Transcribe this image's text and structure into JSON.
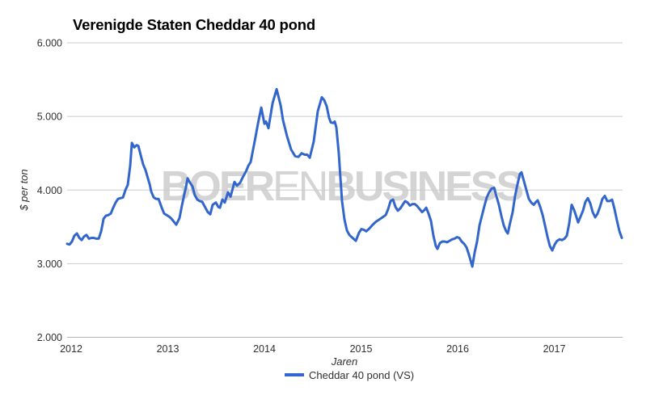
{
  "chart": {
    "title": "Verenigde Staten Cheddar 40 pond",
    "watermark": {
      "text": "BOERENBUSINESS",
      "segments": [
        {
          "text": "BOER",
          "weight": "bold"
        },
        {
          "text": "EN",
          "weight": "normal"
        },
        {
          "text": "BUSINESS",
          "weight": "bold"
        }
      ],
      "color": "#d4d4d4"
    },
    "colors": {
      "line": "#3366cc",
      "grid": "#cccccc",
      "baseline": "#b3b3b3",
      "text": "#2f2f2f",
      "background": "#ffffff"
    }
  },
  "chart_data": {
    "type": "line",
    "title": "Verenigde Staten Cheddar 40 pond",
    "xlabel": "Jaren",
    "ylabel": "$ per ton",
    "xlim": [
      2011.958,
      2017.707
    ],
    "ylim": [
      2000,
      6000
    ],
    "grid": "horizontal-only",
    "x_ticks": [
      {
        "year": 2012,
        "label": "2012"
      },
      {
        "year": 2013,
        "label": "2013"
      },
      {
        "year": 2014,
        "label": "2014"
      },
      {
        "year": 2015,
        "label": "2015"
      },
      {
        "year": 2016,
        "label": "2016"
      },
      {
        "year": 2017,
        "label": "2017"
      }
    ],
    "y_ticks": [
      {
        "value": 2000,
        "label": "2.000"
      },
      {
        "value": 3000,
        "label": "3.000"
      },
      {
        "value": 4000,
        "label": "4.000"
      },
      {
        "value": 5000,
        "label": "5.000"
      },
      {
        "value": 6000,
        "label": "6.000"
      }
    ],
    "legend": {
      "position": "bottom",
      "entries": [
        {
          "label": "Cheddar 40 pond (VS)",
          "color": "#3366cc"
        }
      ]
    },
    "series": [
      {
        "name": "Cheddar 40 pond (VS)",
        "points": [
          [
            2011.958,
            3270
          ],
          [
            2011.983,
            3260
          ],
          [
            2012.008,
            3300
          ],
          [
            2012.033,
            3380
          ],
          [
            2012.059,
            3410
          ],
          [
            2012.084,
            3350
          ],
          [
            2012.109,
            3320
          ],
          [
            2012.134,
            3370
          ],
          [
            2012.159,
            3390
          ],
          [
            2012.184,
            3340
          ],
          [
            2012.209,
            3350
          ],
          [
            2012.234,
            3350
          ],
          [
            2012.259,
            3340
          ],
          [
            2012.285,
            3340
          ],
          [
            2012.31,
            3440
          ],
          [
            2012.335,
            3610
          ],
          [
            2012.36,
            3650
          ],
          [
            2012.385,
            3660
          ],
          [
            2012.41,
            3680
          ],
          [
            2012.435,
            3760
          ],
          [
            2012.46,
            3830
          ],
          [
            2012.485,
            3880
          ],
          [
            2012.51,
            3890
          ],
          [
            2012.536,
            3900
          ],
          [
            2012.561,
            4000
          ],
          [
            2012.586,
            4070
          ],
          [
            2012.611,
            4330
          ],
          [
            2012.628,
            4640
          ],
          [
            2012.653,
            4580
          ],
          [
            2012.678,
            4610
          ],
          [
            2012.695,
            4600
          ],
          [
            2012.72,
            4470
          ],
          [
            2012.745,
            4350
          ],
          [
            2012.77,
            4270
          ],
          [
            2012.787,
            4190
          ],
          [
            2012.812,
            4080
          ],
          [
            2012.828,
            3980
          ],
          [
            2012.854,
            3900
          ],
          [
            2012.879,
            3880
          ],
          [
            2012.904,
            3880
          ],
          [
            2012.921,
            3820
          ],
          [
            2012.937,
            3760
          ],
          [
            2012.962,
            3680
          ],
          [
            2012.987,
            3660
          ],
          [
            2013.013,
            3640
          ],
          [
            2013.038,
            3610
          ],
          [
            2013.063,
            3570
          ],
          [
            2013.088,
            3530
          ],
          [
            2013.121,
            3620
          ],
          [
            2013.146,
            3790
          ],
          [
            2013.172,
            3950
          ],
          [
            2013.188,
            4040
          ],
          [
            2013.205,
            4160
          ],
          [
            2013.23,
            4100
          ],
          [
            2013.255,
            4050
          ],
          [
            2013.28,
            3930
          ],
          [
            2013.305,
            3870
          ],
          [
            2013.331,
            3850
          ],
          [
            2013.356,
            3840
          ],
          [
            2013.381,
            3780
          ],
          [
            2013.414,
            3700
          ],
          [
            2013.439,
            3670
          ],
          [
            2013.464,
            3800
          ],
          [
            2013.498,
            3830
          ],
          [
            2013.523,
            3770
          ],
          [
            2013.54,
            3760
          ],
          [
            2013.565,
            3870
          ],
          [
            2013.59,
            3830
          ],
          [
            2013.623,
            3970
          ],
          [
            2013.649,
            3910
          ],
          [
            2013.69,
            4110
          ],
          [
            2013.716,
            4060
          ],
          [
            2013.749,
            4100
          ],
          [
            2013.774,
            4170
          ],
          [
            2013.808,
            4250
          ],
          [
            2013.833,
            4330
          ],
          [
            2013.858,
            4380
          ],
          [
            2013.883,
            4550
          ],
          [
            2013.908,
            4720
          ],
          [
            2013.933,
            4900
          ],
          [
            2013.967,
            5120
          ],
          [
            2014.0,
            4900
          ],
          [
            2014.017,
            4930
          ],
          [
            2014.042,
            4840
          ],
          [
            2014.084,
            5180
          ],
          [
            2014.126,
            5370
          ],
          [
            2014.168,
            5150
          ],
          [
            2014.192,
            4950
          ],
          [
            2014.234,
            4730
          ],
          [
            2014.276,
            4550
          ],
          [
            2014.318,
            4460
          ],
          [
            2014.351,
            4450
          ],
          [
            2014.385,
            4500
          ],
          [
            2014.418,
            4480
          ],
          [
            2014.443,
            4480
          ],
          [
            2014.469,
            4440
          ],
          [
            2014.51,
            4660
          ],
          [
            2014.552,
            5070
          ],
          [
            2014.594,
            5260
          ],
          [
            2014.619,
            5220
          ],
          [
            2014.644,
            5140
          ],
          [
            2014.669,
            4980
          ],
          [
            2014.686,
            4920
          ],
          [
            2014.711,
            4910
          ],
          [
            2014.728,
            4930
          ],
          [
            2014.745,
            4850
          ],
          [
            2014.77,
            4500
          ],
          [
            2014.787,
            4150
          ],
          [
            2014.803,
            3850
          ],
          [
            2014.828,
            3600
          ],
          [
            2014.854,
            3450
          ],
          [
            2014.879,
            3390
          ],
          [
            2014.904,
            3360
          ],
          [
            2014.929,
            3330
          ],
          [
            2014.946,
            3310
          ],
          [
            2014.979,
            3420
          ],
          [
            2015.004,
            3470
          ],
          [
            2015.029,
            3460
          ],
          [
            2015.054,
            3440
          ],
          [
            2015.088,
            3480
          ],
          [
            2015.121,
            3530
          ],
          [
            2015.155,
            3570
          ],
          [
            2015.188,
            3600
          ],
          [
            2015.222,
            3630
          ],
          [
            2015.255,
            3660
          ],
          [
            2015.28,
            3740
          ],
          [
            2015.305,
            3850
          ],
          [
            2015.331,
            3870
          ],
          [
            2015.356,
            3770
          ],
          [
            2015.381,
            3720
          ],
          [
            2015.406,
            3750
          ],
          [
            2015.431,
            3800
          ],
          [
            2015.456,
            3850
          ],
          [
            2015.481,
            3830
          ],
          [
            2015.506,
            3790
          ],
          [
            2015.531,
            3810
          ],
          [
            2015.556,
            3810
          ],
          [
            2015.582,
            3780
          ],
          [
            2015.607,
            3740
          ],
          [
            2015.632,
            3700
          ],
          [
            2015.657,
            3730
          ],
          [
            2015.674,
            3760
          ],
          [
            2015.699,
            3680
          ],
          [
            2015.724,
            3580
          ],
          [
            2015.749,
            3380
          ],
          [
            2015.774,
            3240
          ],
          [
            2015.791,
            3200
          ],
          [
            2015.816,
            3280
          ],
          [
            2015.841,
            3300
          ],
          [
            2015.866,
            3300
          ],
          [
            2015.891,
            3290
          ],
          [
            2015.916,
            3310
          ],
          [
            2015.941,
            3330
          ],
          [
            2015.967,
            3340
          ],
          [
            2015.992,
            3360
          ],
          [
            2016.017,
            3350
          ],
          [
            2016.042,
            3300
          ],
          [
            2016.067,
            3270
          ],
          [
            2016.092,
            3220
          ],
          [
            2016.117,
            3120
          ],
          [
            2016.151,
            2960
          ],
          [
            2016.176,
            3150
          ],
          [
            2016.201,
            3300
          ],
          [
            2016.226,
            3520
          ],
          [
            2016.251,
            3650
          ],
          [
            2016.276,
            3780
          ],
          [
            2016.301,
            3900
          ],
          [
            2016.326,
            3970
          ],
          [
            2016.351,
            4020
          ],
          [
            2016.377,
            4030
          ],
          [
            2016.402,
            3910
          ],
          [
            2016.427,
            3800
          ],
          [
            2016.452,
            3650
          ],
          [
            2016.477,
            3520
          ],
          [
            2016.502,
            3440
          ],
          [
            2016.519,
            3410
          ],
          [
            2016.544,
            3560
          ],
          [
            2016.569,
            3700
          ],
          [
            2016.594,
            3920
          ],
          [
            2016.619,
            4080
          ],
          [
            2016.644,
            4220
          ],
          [
            2016.661,
            4240
          ],
          [
            2016.686,
            4120
          ],
          [
            2016.711,
            4000
          ],
          [
            2016.736,
            3880
          ],
          [
            2016.761,
            3830
          ],
          [
            2016.787,
            3800
          ],
          [
            2016.812,
            3840
          ],
          [
            2016.828,
            3860
          ],
          [
            2016.854,
            3770
          ],
          [
            2016.879,
            3660
          ],
          [
            2016.904,
            3520
          ],
          [
            2016.929,
            3370
          ],
          [
            2016.954,
            3240
          ],
          [
            2016.979,
            3180
          ],
          [
            2017.004,
            3260
          ],
          [
            2017.029,
            3310
          ],
          [
            2017.054,
            3330
          ],
          [
            2017.079,
            3320
          ],
          [
            2017.105,
            3340
          ],
          [
            2017.13,
            3380
          ],
          [
            2017.155,
            3550
          ],
          [
            2017.18,
            3800
          ],
          [
            2017.205,
            3730
          ],
          [
            2017.23,
            3630
          ],
          [
            2017.247,
            3560
          ],
          [
            2017.272,
            3640
          ],
          [
            2017.297,
            3720
          ],
          [
            2017.322,
            3840
          ],
          [
            2017.347,
            3890
          ],
          [
            2017.372,
            3820
          ],
          [
            2017.397,
            3700
          ],
          [
            2017.423,
            3630
          ],
          [
            2017.448,
            3680
          ],
          [
            2017.473,
            3770
          ],
          [
            2017.498,
            3880
          ],
          [
            2017.523,
            3920
          ],
          [
            2017.548,
            3850
          ],
          [
            2017.573,
            3850
          ],
          [
            2017.598,
            3870
          ],
          [
            2017.623,
            3740
          ],
          [
            2017.649,
            3580
          ],
          [
            2017.674,
            3440
          ],
          [
            2017.699,
            3350
          ]
        ]
      }
    ]
  }
}
